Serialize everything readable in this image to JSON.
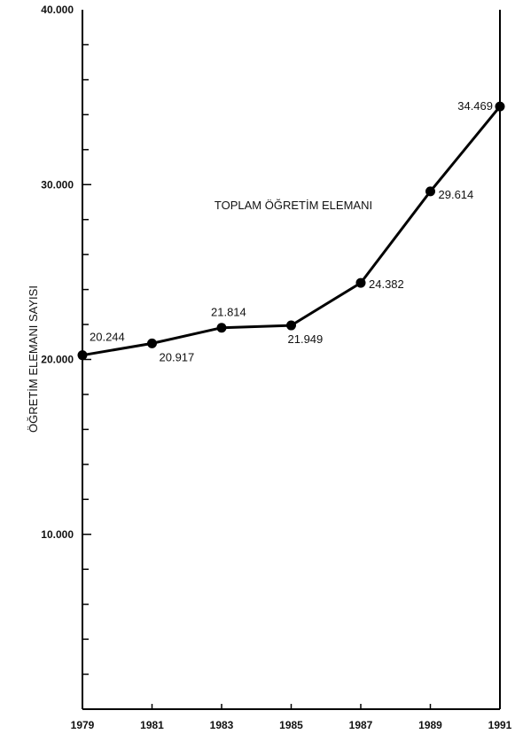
{
  "chart_data": {
    "type": "line",
    "title": "",
    "ylabel": "ÖĞRETİM ELEMANI SAYISI",
    "xlabel": "",
    "x": [
      "1979",
      "1981",
      "1983",
      "1985",
      "1987",
      "1989",
      "1991"
    ],
    "series": [
      {
        "name": "TOPLAM ÖĞRETİM ELEMANI",
        "values": [
          20244,
          20917,
          21814,
          21949,
          24382,
          29614,
          34469
        ],
        "labels": [
          "20.244",
          "20.917",
          "21.814",
          "21.949",
          "24.382",
          "29.614",
          "34.469"
        ]
      }
    ],
    "ylim": [
      0,
      40000
    ],
    "yticks": [
      10000,
      20000,
      30000,
      40000
    ],
    "ytick_labels": [
      "10.000",
      "20.000",
      "30.000",
      "40.000"
    ],
    "grid": false,
    "legend": "inline-label",
    "line_color": "#000000"
  }
}
